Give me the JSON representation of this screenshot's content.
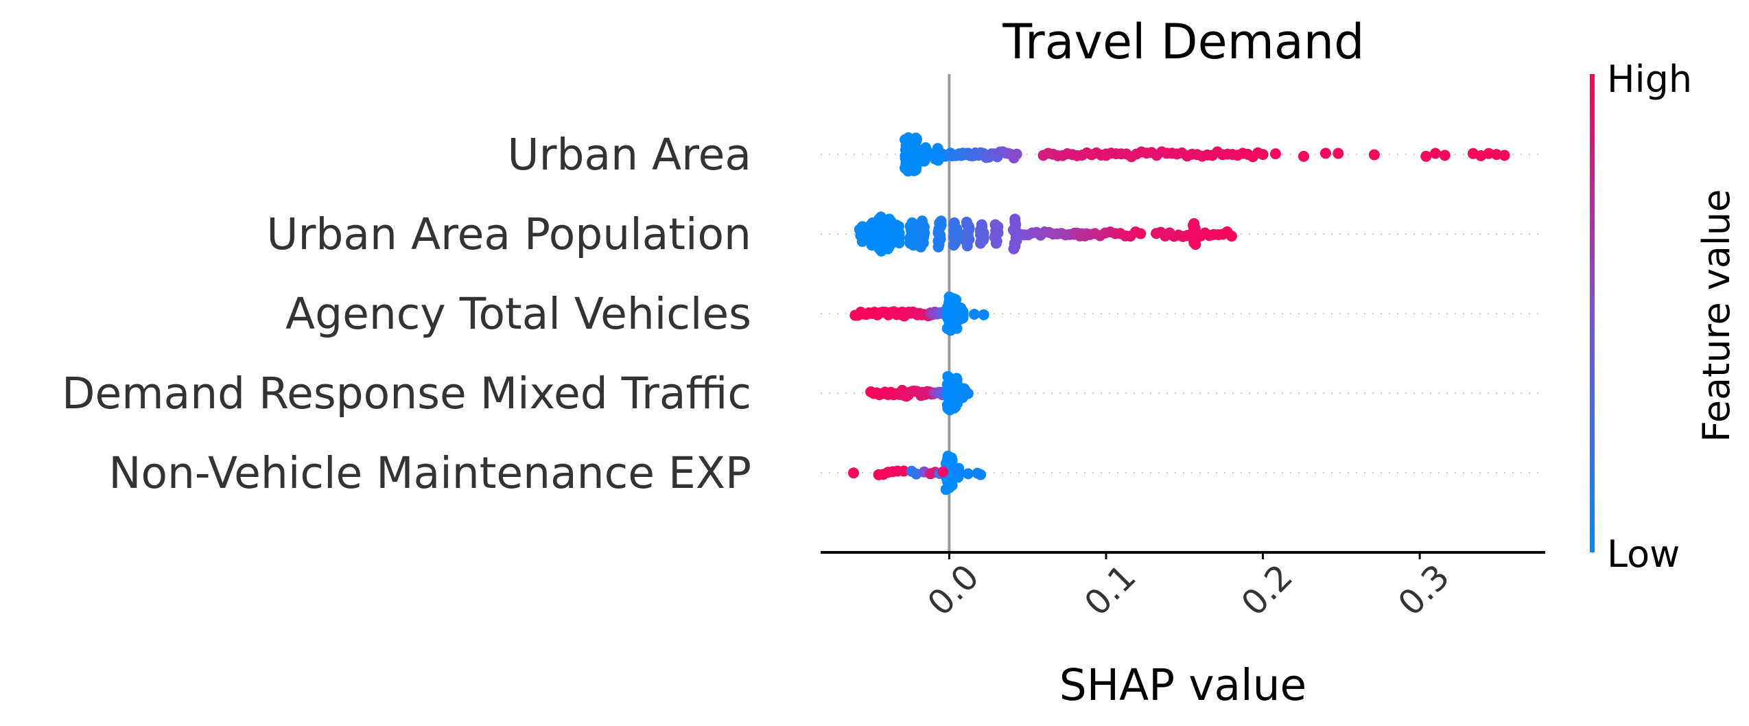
{
  "chart_data": {
    "type": "scatter",
    "subtype": "shap-beeswarm",
    "title": "Travel Demand",
    "xlabel": "SHAP value",
    "ylabel": "",
    "xlim": [
      -0.082,
      0.38
    ],
    "xticks": [
      0.0,
      0.1,
      0.2,
      0.3
    ],
    "xtick_labels": [
      "0.0",
      "0.1",
      "0.2",
      "0.3"
    ],
    "zero_line": 0.0,
    "colorbar": {
      "label": "Feature value",
      "high": "High",
      "low": "Low",
      "low_color": "#008bfb",
      "high_color": "#ff0052"
    },
    "features": [
      {
        "name": "Urban Area",
        "groups": [
          {
            "x": -0.027,
            "n": 34,
            "spread": 0.45,
            "c": 0.0
          },
          {
            "x": -0.022,
            "n": 34,
            "spread": 0.44,
            "c": 0.0
          },
          {
            "x": -0.015,
            "n": 12,
            "spread": 0.18,
            "c": 0.02
          },
          {
            "x": -0.008,
            "n": 10,
            "spread": 0.16,
            "c": 0.03
          }
        ],
        "segments": [
          {
            "x0": -0.006,
            "x1": 0.02,
            "n": 24,
            "spread": 0.05,
            "c0": 0.05,
            "c1": 0.3
          },
          {
            "x0": 0.02,
            "x1": 0.043,
            "n": 14,
            "spread": 0.1,
            "c0": 0.3,
            "c1": 0.55
          },
          {
            "x0": 0.06,
            "x1": 0.1,
            "n": 14,
            "spread": 0.05,
            "c0": 0.82,
            "c1": 0.9
          },
          {
            "x0": 0.1,
            "x1": 0.2,
            "n": 32,
            "spread": 0.07,
            "c0": 0.88,
            "c1": 0.95
          }
        ],
        "points": [
          {
            "x": 0.208,
            "c": 0.95
          },
          {
            "x": 0.226,
            "c": 0.95
          },
          {
            "x": 0.24,
            "c": 0.95
          },
          {
            "x": 0.248,
            "c": 0.95
          },
          {
            "x": 0.271,
            "c": 0.96
          },
          {
            "x": 0.304,
            "c": 0.95
          },
          {
            "x": 0.31,
            "c": 0.95
          },
          {
            "x": 0.316,
            "c": 0.95
          },
          {
            "x": 0.334,
            "c": 0.96
          },
          {
            "x": 0.339,
            "c": 0.96
          },
          {
            "x": 0.344,
            "c": 0.96
          },
          {
            "x": 0.349,
            "c": 0.96
          },
          {
            "x": 0.354,
            "c": 0.96
          }
        ]
      },
      {
        "name": "Urban Area Population",
        "groups": [
          {
            "x": -0.056,
            "n": 6,
            "spread": 0.2,
            "c": 0.02
          },
          {
            "x": -0.05,
            "n": 12,
            "spread": 0.3,
            "c": 0.01
          },
          {
            "x": -0.044,
            "n": 34,
            "spread": 0.46,
            "c": 0.0
          },
          {
            "x": -0.038,
            "n": 22,
            "spread": 0.4,
            "c": 0.0
          },
          {
            "x": -0.033,
            "n": 14,
            "spread": 0.24,
            "c": 0.02
          },
          {
            "x": -0.024,
            "n": 14,
            "spread": 0.3,
            "c": 0.05
          },
          {
            "x": -0.017,
            "n": 14,
            "spread": 0.35,
            "c": 0.08
          },
          {
            "x": -0.006,
            "n": 14,
            "spread": 0.35,
            "c": 0.12
          },
          {
            "x": 0.004,
            "n": 12,
            "spread": 0.3,
            "c": 0.22
          },
          {
            "x": 0.012,
            "n": 12,
            "spread": 0.32,
            "c": 0.3
          },
          {
            "x": 0.021,
            "n": 12,
            "spread": 0.25,
            "c": 0.38
          },
          {
            "x": 0.03,
            "n": 10,
            "spread": 0.25,
            "c": 0.45
          },
          {
            "x": 0.042,
            "n": 12,
            "spread": 0.4,
            "c": 0.48
          },
          {
            "x": 0.156,
            "n": 14,
            "spread": 0.28,
            "c": 0.94
          }
        ],
        "segments": [
          {
            "x0": 0.045,
            "x1": 0.09,
            "n": 18,
            "spread": 0.06,
            "c0": 0.5,
            "c1": 0.7
          },
          {
            "x0": 0.08,
            "x1": 0.122,
            "n": 14,
            "spread": 0.06,
            "c0": 0.7,
            "c1": 0.93
          },
          {
            "x0": 0.132,
            "x1": 0.18,
            "n": 18,
            "spread": 0.07,
            "c0": 0.9,
            "c1": 0.97
          }
        ],
        "points": []
      },
      {
        "name": "Agency Total Vehicles",
        "groups": [
          {
            "x": 0.0,
            "n": 20,
            "spread": 0.45,
            "c": 0.0
          },
          {
            "x": 0.004,
            "n": 30,
            "spread": 0.4,
            "c": 0.0
          },
          {
            "x": 0.008,
            "n": 10,
            "spread": 0.15,
            "c": 0.02
          }
        ],
        "segments": [
          {
            "x0": -0.06,
            "x1": -0.03,
            "n": 18,
            "spread": 0.05,
            "c0": 0.97,
            "c1": 0.95
          },
          {
            "x0": -0.03,
            "x1": -0.012,
            "n": 14,
            "spread": 0.07,
            "c0": 0.95,
            "c1": 0.88
          },
          {
            "x0": -0.012,
            "x1": -0.002,
            "n": 8,
            "spread": 0.05,
            "c0": 0.7,
            "c1": 0.3
          }
        ],
        "points": [
          {
            "x": 0.016,
            "c": 0.05
          },
          {
            "x": 0.022,
            "c": 0.05
          }
        ]
      },
      {
        "name": "Demand Response Mixed Traffic",
        "groups": [
          {
            "x": 0.0,
            "n": 22,
            "spread": 0.45,
            "c": 0.0
          },
          {
            "x": 0.004,
            "n": 26,
            "spread": 0.4,
            "c": 0.0
          },
          {
            "x": 0.009,
            "n": 8,
            "spread": 0.12,
            "c": 0.03
          }
        ],
        "segments": [
          {
            "x0": -0.05,
            "x1": -0.03,
            "n": 12,
            "spread": 0.05,
            "c0": 0.96,
            "c1": 0.95
          },
          {
            "x0": -0.03,
            "x1": -0.01,
            "n": 16,
            "spread": 0.08,
            "c0": 0.92,
            "c1": 0.85
          },
          {
            "x0": -0.01,
            "x1": -0.002,
            "n": 8,
            "spread": 0.05,
            "c0": 0.7,
            "c1": 0.3
          }
        ],
        "points": [
          {
            "x": 0.012,
            "c": 0.05
          }
        ]
      },
      {
        "name": "Non-Vehicle Maintenance EXP",
        "groups": [
          {
            "x": -0.001,
            "n": 10,
            "spread": 0.45,
            "c": 0.0
          },
          {
            "x": 0.001,
            "n": 14,
            "spread": 0.4,
            "c": 0.0
          },
          {
            "x": 0.005,
            "n": 6,
            "spread": 0.12,
            "c": 0.03
          }
        ],
        "segments": [],
        "points": [
          {
            "x": -0.061,
            "c": 0.96
          },
          {
            "x": -0.045,
            "c": 0.96
          },
          {
            "x": -0.042,
            "c": 0.96
          },
          {
            "x": -0.039,
            "c": 0.95
          },
          {
            "x": -0.036,
            "c": 0.96
          },
          {
            "x": -0.033,
            "c": 0.95
          },
          {
            "x": -0.029,
            "c": 0.96
          },
          {
            "x": -0.024,
            "c": 0.2
          },
          {
            "x": -0.021,
            "c": 0.2
          },
          {
            "x": -0.016,
            "c": 0.5
          },
          {
            "x": -0.012,
            "c": 0.85
          },
          {
            "x": -0.009,
            "c": 0.85
          },
          {
            "x": -0.006,
            "c": 0.2
          },
          {
            "x": -0.004,
            "c": 0.9
          },
          {
            "x": 0.012,
            "c": 0.05
          },
          {
            "x": 0.018,
            "c": 0.05
          },
          {
            "x": 0.02,
            "c": 0.05
          }
        ]
      }
    ]
  }
}
